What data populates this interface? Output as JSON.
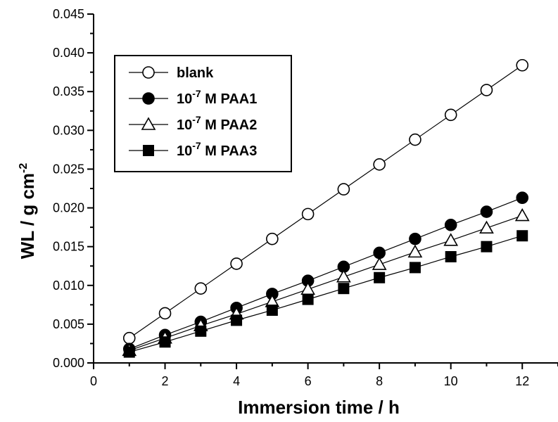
{
  "chart_data": {
    "type": "line",
    "title": "",
    "xlabel": "Immersion time / h",
    "ylabel_main": "WL / g cm",
    "ylabel_sup": "-2",
    "xlim": [
      0,
      13
    ],
    "ylim": [
      0,
      0.045
    ],
    "xticks": [
      0,
      2,
      4,
      6,
      8,
      10,
      12
    ],
    "yticks": [
      "0.000",
      "0.005",
      "0.010",
      "0.015",
      "0.020",
      "0.025",
      "0.030",
      "0.035",
      "0.040",
      "0.045"
    ],
    "grid": false,
    "legend_position": "top-left",
    "x": [
      1,
      2,
      3,
      4,
      5,
      6,
      7,
      8,
      9,
      10,
      11,
      12
    ],
    "series": [
      {
        "name": "blank",
        "prefix": "",
        "sup": "",
        "suffix": "blank",
        "marker": "circle-open",
        "values": [
          0.0032,
          0.0064,
          0.0096,
          0.0128,
          0.016,
          0.0192,
          0.0224,
          0.0256,
          0.0288,
          0.032,
          0.0352,
          0.0384
        ]
      },
      {
        "name": "10-7 M PAA1",
        "prefix": "10",
        "sup": "-7",
        "suffix": " M PAA1",
        "marker": "circle-filled",
        "values": [
          0.0018,
          0.0036,
          0.0053,
          0.0071,
          0.0089,
          0.0106,
          0.0124,
          0.0142,
          0.016,
          0.0178,
          0.0195,
          0.0213
        ]
      },
      {
        "name": "10-7 M PAA2",
        "prefix": "10",
        "sup": "-7",
        "suffix": " M PAA2",
        "marker": "triangle-open",
        "values": [
          0.0016,
          0.0032,
          0.0048,
          0.0063,
          0.0079,
          0.0095,
          0.0111,
          0.0127,
          0.0143,
          0.0158,
          0.0174,
          0.019
        ]
      },
      {
        "name": "10-7 M PAA3",
        "prefix": "10",
        "sup": "-7",
        "suffix": " M PAA3",
        "marker": "square-filled",
        "values": [
          0.0014,
          0.0027,
          0.0041,
          0.0055,
          0.0068,
          0.0082,
          0.0096,
          0.011,
          0.0123,
          0.0137,
          0.015,
          0.0164
        ]
      }
    ]
  }
}
